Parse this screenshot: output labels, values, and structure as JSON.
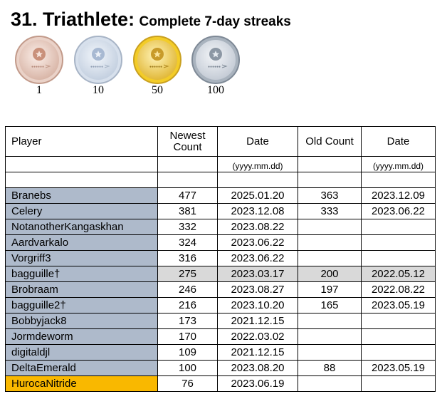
{
  "title": {
    "main": "31. Triathlete:",
    "sub": "Complete 7-day streaks"
  },
  "medals": [
    {
      "label": "1",
      "icon": "bronze-medal-icon",
      "color": "#c9907a"
    },
    {
      "label": "10",
      "icon": "silver-medal-icon",
      "color": "#a8b9d2"
    },
    {
      "label": "50",
      "icon": "gold-medal-icon",
      "color": "#c89b2a"
    },
    {
      "label": "100",
      "icon": "platinum-medal-icon",
      "color": "#8c97a4"
    }
  ],
  "table": {
    "headers": [
      "Player",
      "Newest Count",
      "Date",
      "Old Count",
      "Date"
    ],
    "date_format": "(yyyy.mm.dd)",
    "rows": [
      {
        "player": "Branebs",
        "newest": "477",
        "date": "2025.01.20",
        "old": "363",
        "old_date": "2023.12.09"
      },
      {
        "player": "Celery",
        "newest": "381",
        "date": "2023.12.08",
        "old": "333",
        "old_date": "2023.06.22"
      },
      {
        "player": "NotanotherKangaskhan",
        "newest": "332",
        "date": "2023.08.22",
        "old": "",
        "old_date": ""
      },
      {
        "player": "Aardvarkalo",
        "newest": "324",
        "date": "2023.06.22",
        "old": "",
        "old_date": ""
      },
      {
        "player": "Vorgriff3",
        "newest": "316",
        "date": "2023.06.22",
        "old": "",
        "old_date": ""
      },
      {
        "player": "bagguille†",
        "newest": "275",
        "date": "2023.03.17",
        "old": "200",
        "old_date": "2022.05.12"
      },
      {
        "player": "Brobraam",
        "newest": "246",
        "date": "2023.08.27",
        "old": "197",
        "old_date": "2022.08.22"
      },
      {
        "player": "bagguille2†",
        "newest": "216",
        "date": "2023.10.20",
        "old": "165",
        "old_date": "2023.05.19"
      },
      {
        "player": "Bobbyjack8",
        "newest": "173",
        "date": "2021.12.15",
        "old": "",
        "old_date": ""
      },
      {
        "player": "Jormdeworm",
        "newest": "170",
        "date": "2022.03.02",
        "old": "",
        "old_date": ""
      },
      {
        "player": "digitaldjl",
        "newest": "109",
        "date": "2021.12.15",
        "old": "",
        "old_date": ""
      },
      {
        "player": "DeltaEmerald",
        "newest": "100",
        "date": "2023.08.20",
        "old": "88",
        "old_date": "2023.05.19"
      },
      {
        "player": "HurocaNitride",
        "newest": "76",
        "date": "2023.06.19",
        "old": "",
        "old_date": ""
      }
    ]
  },
  "colors": {
    "player_cell": "#aebacb",
    "highlight_player": "#f9b800",
    "highlight_row": "#d9d9d9"
  }
}
